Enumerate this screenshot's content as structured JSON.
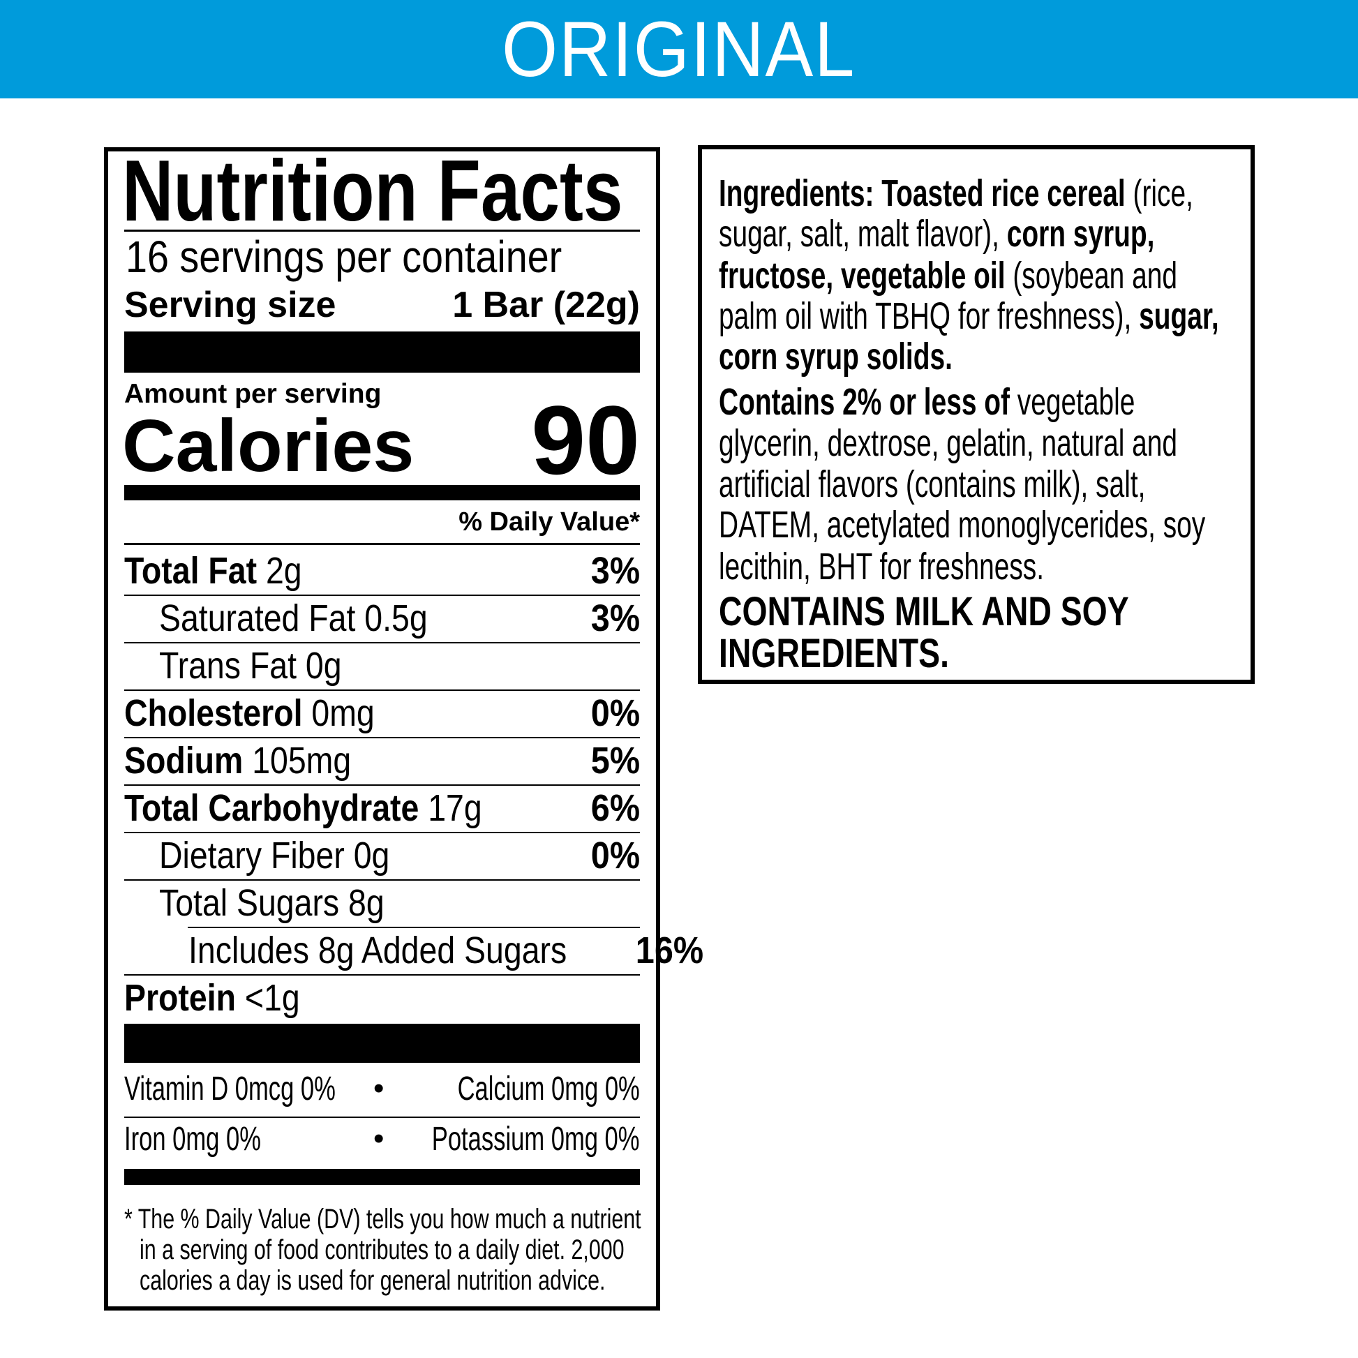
{
  "banner": {
    "title": "ORIGINAL",
    "color": "#009bdb"
  },
  "nutrition": {
    "title": "Nutrition Facts",
    "servings": "16 servings per container",
    "serving_size_label": "Serving size",
    "serving_size_value": "1 Bar (22g)",
    "amount_per_serving": "Amount per serving",
    "calories_label": "Calories",
    "calories_value": "90",
    "daily_value_header": "% Daily Value*",
    "rows": [
      {
        "name": "Total Fat",
        "amount": "2g",
        "dv": "3%"
      },
      {
        "name": "Saturated Fat",
        "amount": "0.5g",
        "dv": "3%"
      },
      {
        "name": "Trans Fat",
        "amount": "0g",
        "dv": ""
      },
      {
        "name": "Cholesterol",
        "amount": "0mg",
        "dv": "0%"
      },
      {
        "name": "Sodium",
        "amount": "105mg",
        "dv": "5%"
      },
      {
        "name": "Total Carbohydrate",
        "amount": "17g",
        "dv": "6%"
      },
      {
        "name": "Dietary Fiber",
        "amount": "0g",
        "dv": "0%"
      },
      {
        "name": "Total Sugars",
        "amount": "8g",
        "dv": ""
      },
      {
        "name": "Includes 8g Added Sugars",
        "amount": "",
        "dv": "16%"
      },
      {
        "name": "Protein",
        "amount": "<1g",
        "dv": ""
      }
    ],
    "vitamins": [
      {
        "text": "Vitamin D 0mcg 0%"
      },
      {
        "text": "Calcium 0mg 0%"
      },
      {
        "text": "Iron 0mg 0%"
      },
      {
        "text": "Potassium 0mg 0%"
      }
    ],
    "bullet": "•",
    "footnote": [
      "* The % Daily Value (DV) tells you how much a nutrient",
      "in a serving of food contributes to a daily diet. 2,000",
      "calories a day is used for general nutrition advice."
    ]
  },
  "ingredients": {
    "lines": [
      [
        {
          "t": "Ingredients: Toasted rice cereal",
          "b": true
        },
        {
          "t": " (rice,",
          "b": false
        }
      ],
      [
        {
          "t": "sugar, salt, malt flavor), ",
          "b": false
        },
        {
          "t": "corn syrup,",
          "b": true
        }
      ],
      [
        {
          "t": "fructose, vegetable oil",
          "b": true
        },
        {
          "t": " (soybean and",
          "b": false
        }
      ],
      [
        {
          "t": "palm oil with TBHQ for freshness), ",
          "b": false
        },
        {
          "t": "sugar,",
          "b": true
        }
      ],
      [
        {
          "t": "corn syrup solids.",
          "b": true
        }
      ],
      [
        {
          "t": "Contains 2% or less of",
          "b": true
        },
        {
          "t": " vegetable",
          "b": false
        }
      ],
      [
        {
          "t": "glycerin, dextrose, gelatin, natural and",
          "b": false
        }
      ],
      [
        {
          "t": "artificial flavors (contains milk), salt,",
          "b": false
        }
      ],
      [
        {
          "t": "DATEM, acetylated monoglycerides, soy",
          "b": false
        }
      ],
      [
        {
          "t": "lecithin, BHT for freshness.",
          "b": false
        }
      ]
    ],
    "allergen": [
      "CONTAINS MILK AND SOY",
      "INGREDIENTS."
    ]
  }
}
